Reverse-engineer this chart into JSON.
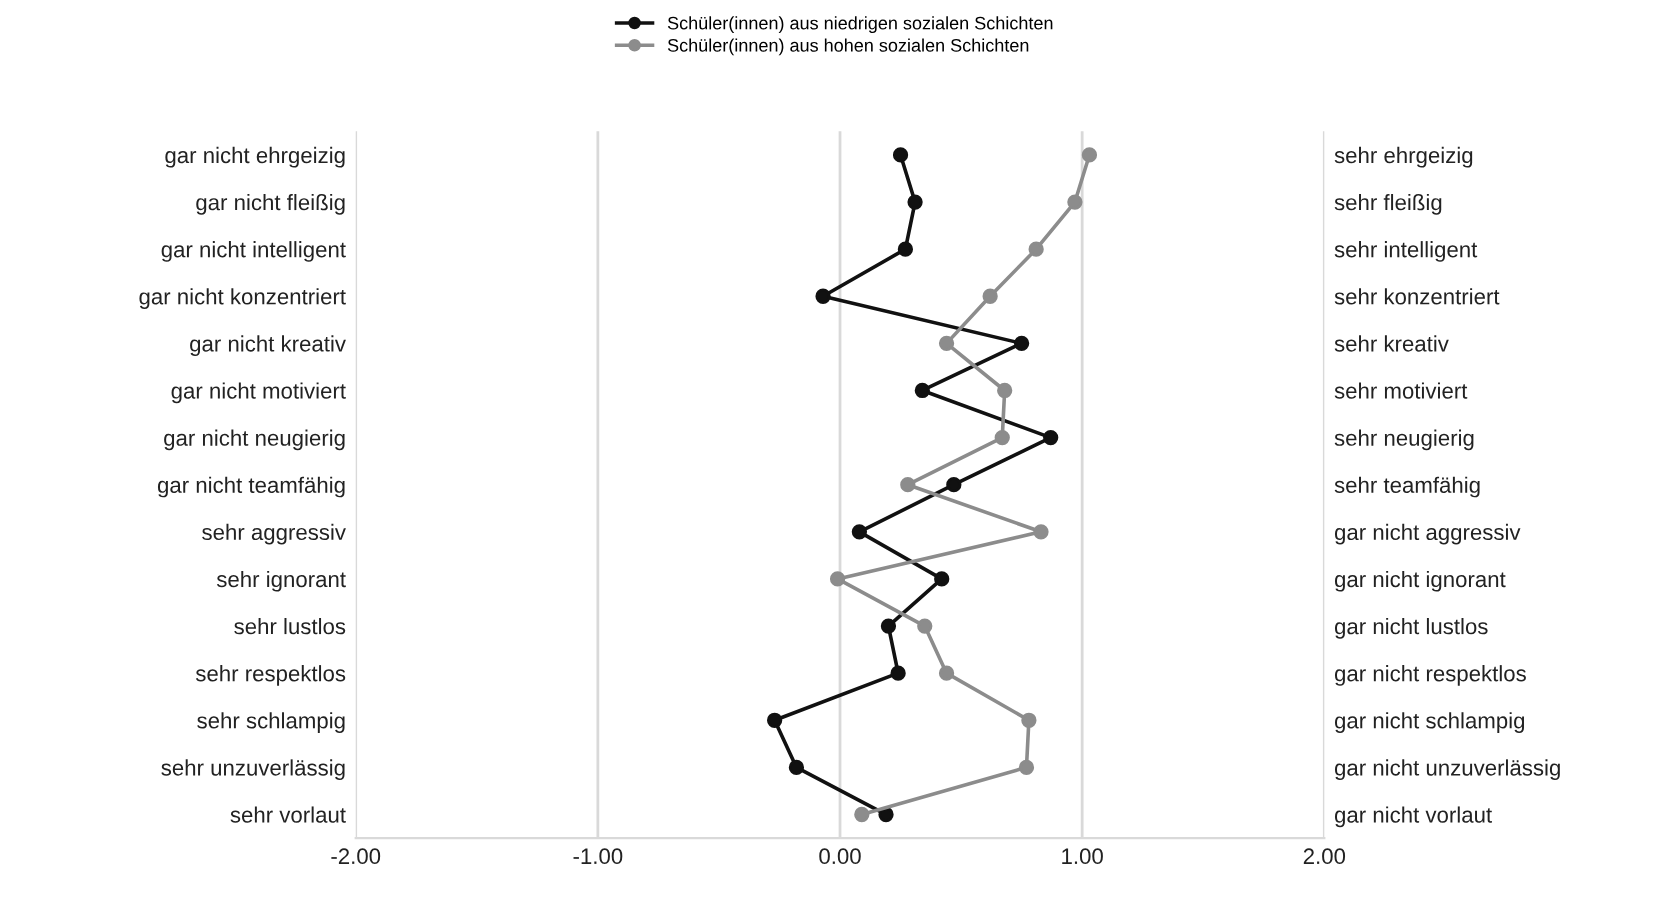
{
  "chart_data": {
    "type": "line",
    "orientation": "horizontal",
    "categories": [
      "gar nicht ehrgeizig",
      "gar nicht fleißig",
      "gar nicht intelligent",
      "gar nicht konzentriert",
      "gar nicht kreativ",
      "gar nicht motiviert",
      "gar nicht neugierig",
      "gar nicht teamfähig",
      "sehr aggressiv",
      "sehr ignorant",
      "sehr lustlos",
      "sehr respektlos",
      "sehr schlampig",
      "sehr unzuverlässig",
      "sehr vorlaut"
    ],
    "y2_categories": [
      "sehr ehrgeizig",
      "sehr fleißig",
      "sehr intelligent",
      "sehr konzentriert",
      "sehr kreativ",
      "sehr motiviert",
      "sehr neugierig",
      "sehr teamfähig",
      "gar nicht aggressiv",
      "gar nicht ignorant",
      "gar nicht lustlos",
      "gar nicht respektlos",
      "gar nicht schlampig",
      "gar nicht unzuverlässig",
      "gar nicht vorlaut"
    ],
    "series": [
      {
        "name": "Schüler(innen) aus niedrigen sozialen Schichten",
        "color": "#111111",
        "values": [
          0.25,
          0.31,
          0.27,
          -0.07,
          0.75,
          0.34,
          0.87,
          0.47,
          0.08,
          0.42,
          0.2,
          0.24,
          -0.27,
          -0.18,
          0.19
        ]
      },
      {
        "name": "Schüler(innen) aus hohen sozialen Schichten",
        "color": "#8c8c8c",
        "values": [
          1.03,
          0.97,
          0.81,
          0.62,
          0.44,
          0.68,
          0.67,
          0.28,
          0.83,
          -0.01,
          0.35,
          0.44,
          0.78,
          0.77,
          0.09
        ]
      }
    ],
    "xlim": [
      -2,
      2
    ],
    "xticks": [
      {
        "value": -2,
        "label": "-2.00"
      },
      {
        "value": -1,
        "label": "-1.00"
      },
      {
        "value": 0,
        "label": "0.00"
      },
      {
        "value": 1,
        "label": "1.00"
      },
      {
        "value": 2,
        "label": "2.00"
      }
    ],
    "grid": "x",
    "legend": "top",
    "marker": "circle",
    "line_style": "solid"
  }
}
